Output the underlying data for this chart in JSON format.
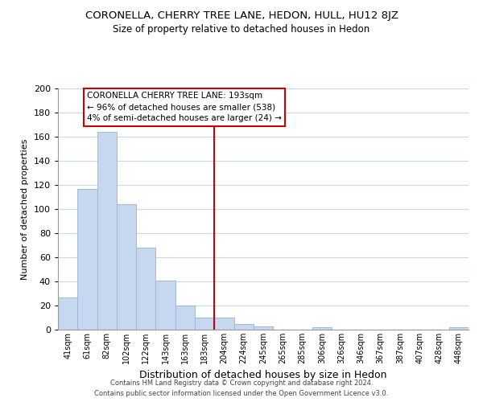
{
  "title": "CORONELLA, CHERRY TREE LANE, HEDON, HULL, HU12 8JZ",
  "subtitle": "Size of property relative to detached houses in Hedon",
  "xlabel": "Distribution of detached houses by size in Hedon",
  "ylabel": "Number of detached properties",
  "bar_labels": [
    "41sqm",
    "61sqm",
    "82sqm",
    "102sqm",
    "122sqm",
    "143sqm",
    "163sqm",
    "183sqm",
    "204sqm",
    "224sqm",
    "245sqm",
    "265sqm",
    "285sqm",
    "306sqm",
    "326sqm",
    "346sqm",
    "367sqm",
    "387sqm",
    "407sqm",
    "428sqm",
    "448sqm"
  ],
  "bar_values": [
    27,
    117,
    164,
    104,
    68,
    41,
    20,
    10,
    10,
    5,
    3,
    0,
    0,
    2,
    0,
    0,
    0,
    0,
    0,
    0,
    2
  ],
  "bar_color": "#c5d8f0",
  "bar_edge_color": "#a0b8d8",
  "vline_x": 7.5,
  "vline_color": "#cc0000",
  "annotation_title": "CORONELLA CHERRY TREE LANE: 193sqm",
  "annotation_line1": "← 96% of detached houses are smaller (538)",
  "annotation_line2": "4% of semi-detached houses are larger (24) →",
  "annotation_box_color": "#ffffff",
  "annotation_box_edge": "#cc0000",
  "ylim": [
    0,
    200
  ],
  "yticks": [
    0,
    20,
    40,
    60,
    80,
    100,
    120,
    140,
    160,
    180,
    200
  ],
  "footer_line1": "Contains HM Land Registry data © Crown copyright and database right 2024.",
  "footer_line2": "Contains public sector information licensed under the Open Government Licence v3.0.",
  "background_color": "#ffffff",
  "grid_color": "#c8d8ec"
}
